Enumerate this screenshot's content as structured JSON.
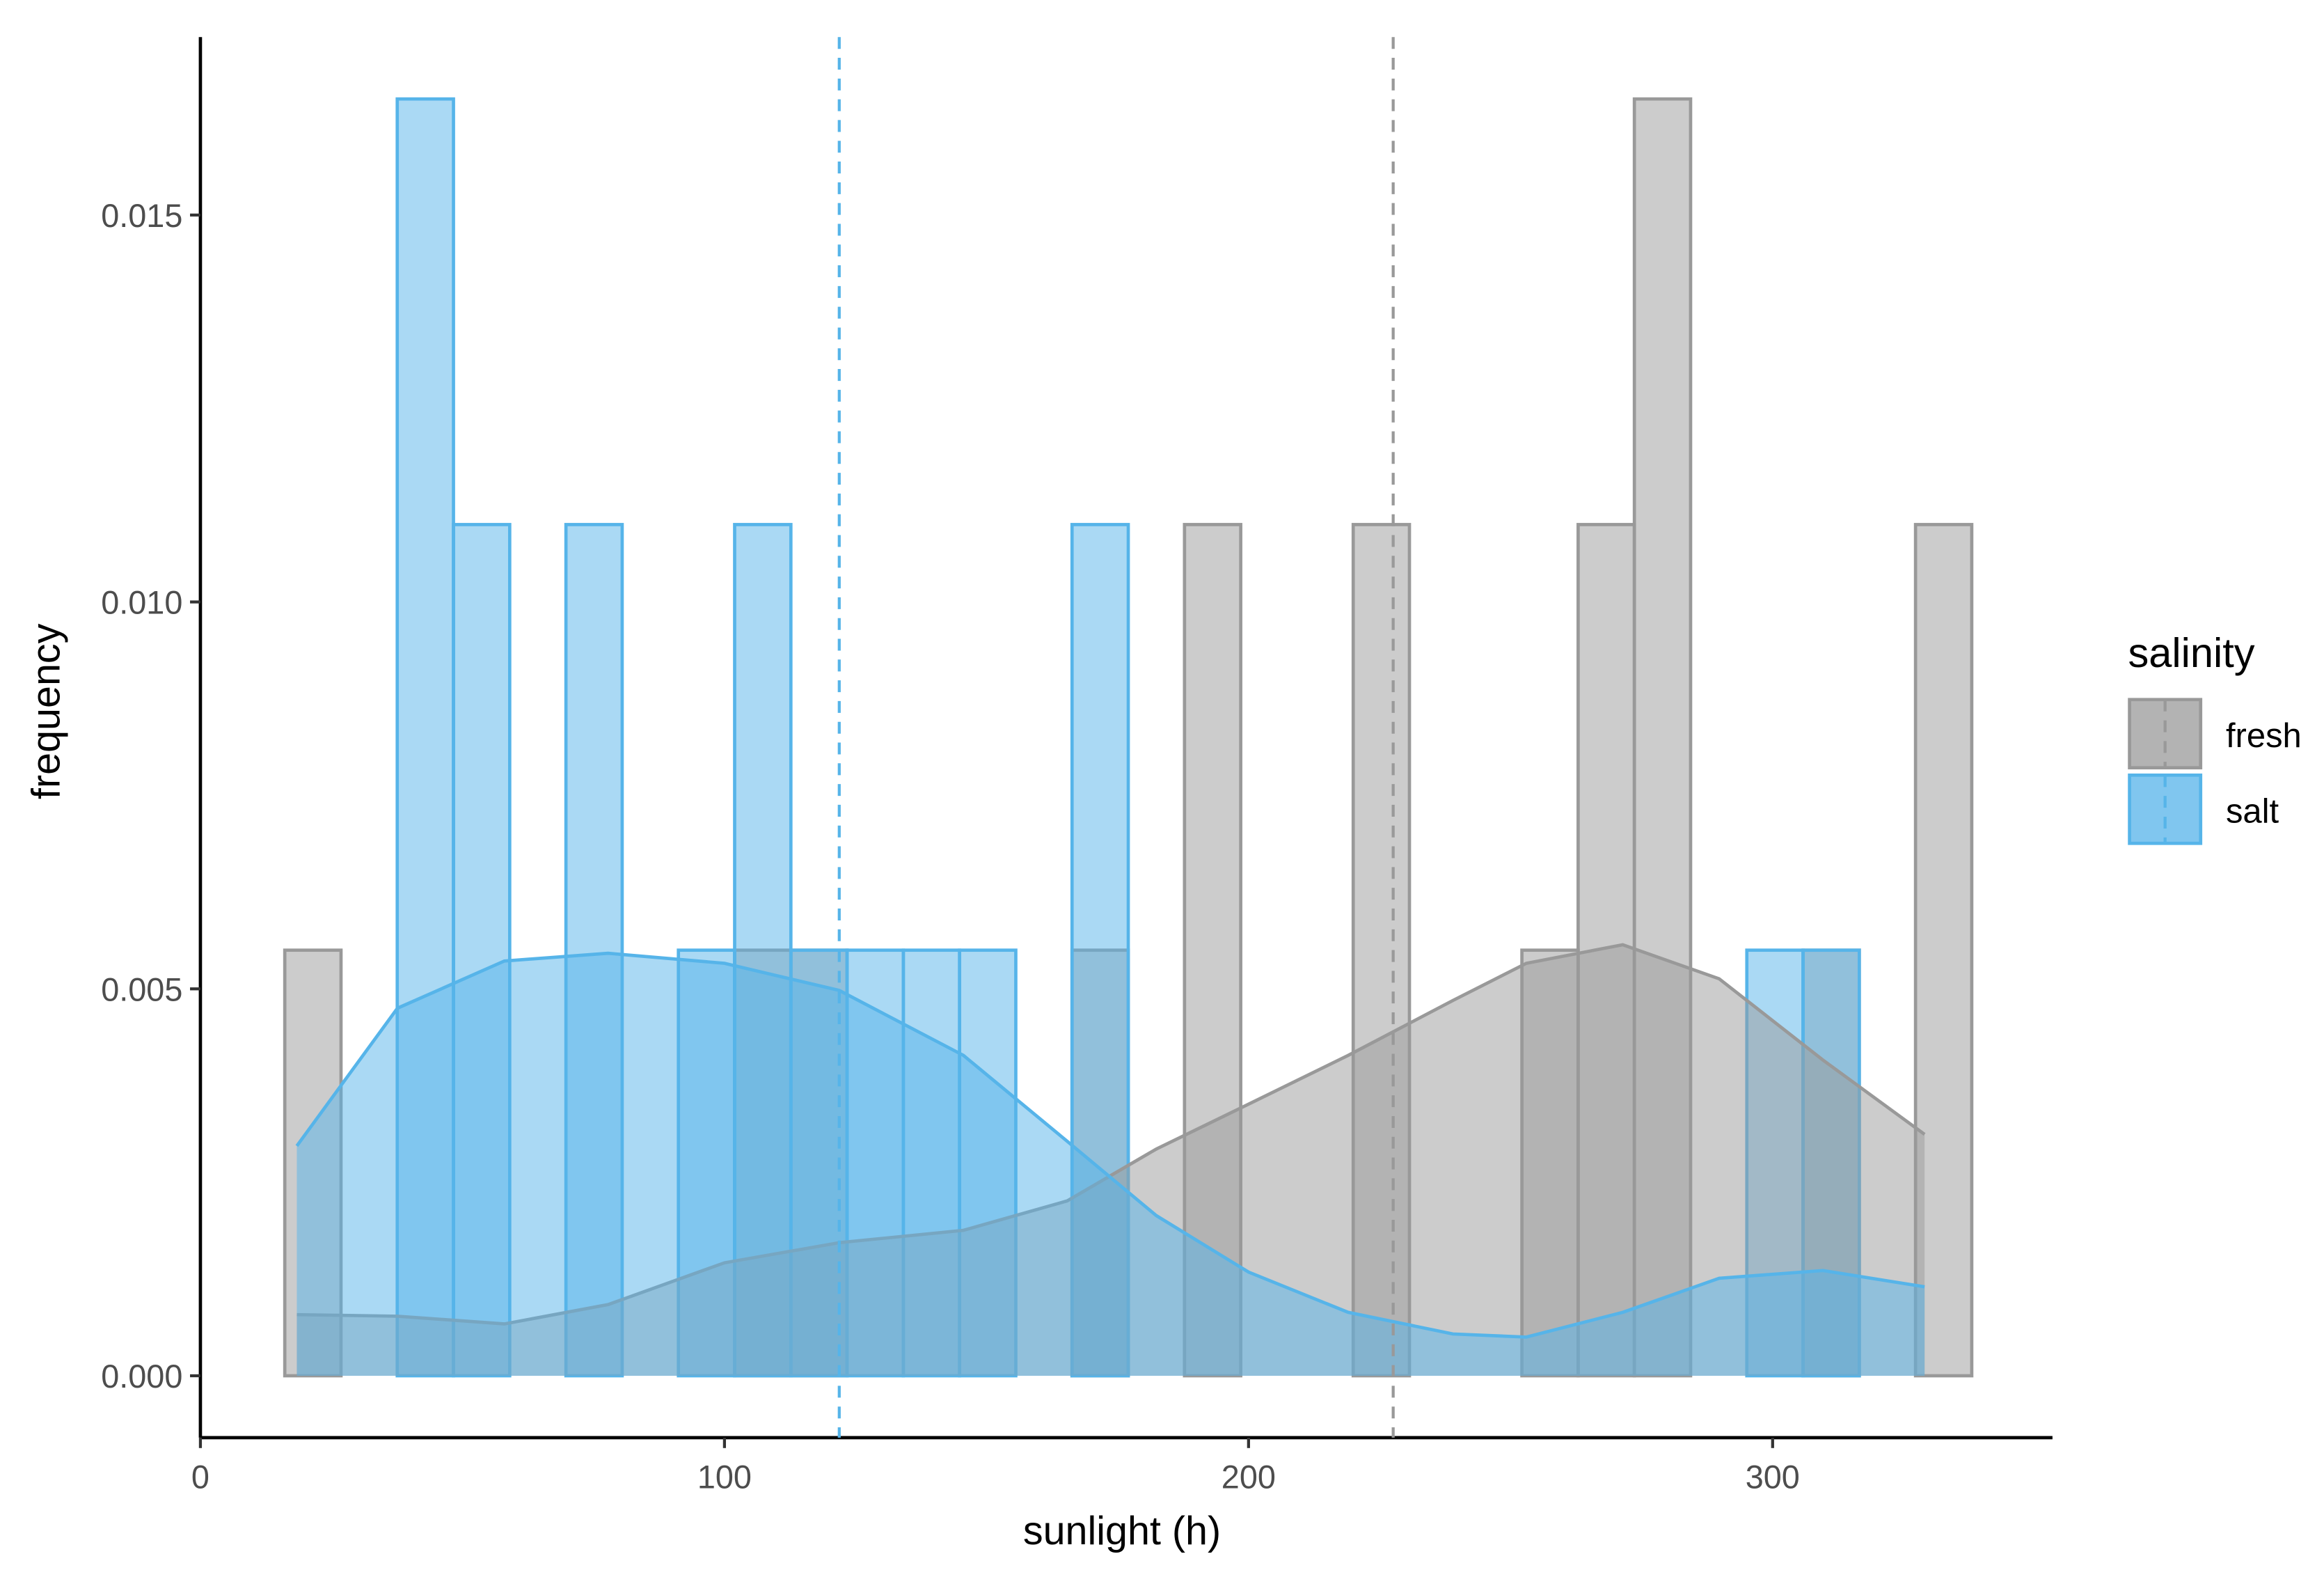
{
  "chart_data": {
    "type": "histogram",
    "x_label": "sunlight (h)",
    "y_label": "frequency",
    "bins": [
      16.1,
      26.83,
      37.56,
      48.29,
      59.02,
      69.75,
      80.48,
      91.21,
      101.94,
      112.67,
      123.4,
      134.13,
      144.86,
      155.59,
      166.32,
      177.05,
      187.78,
      198.51,
      209.24,
      219.97,
      230.7,
      241.43,
      252.16,
      262.89,
      273.62,
      284.35,
      295.08,
      305.81,
      316.54,
      327.27,
      338.0
    ],
    "series": [
      {
        "name": "fresh",
        "color": "#999999",
        "values": [
          0.0055,
          0,
          0,
          0,
          0,
          0,
          0,
          0,
          0.0055,
          0.0055,
          0,
          0,
          0,
          0,
          0.0055,
          0,
          0.011,
          0,
          0,
          0.011,
          0,
          0,
          0.0055,
          0.011,
          0.0165,
          0,
          0,
          0.0055,
          0,
          0.011
        ],
        "density": [
          0.00079,
          0.00077,
          0.00067,
          0.00092,
          0.00146,
          0.00172,
          0.00188,
          0.00226,
          0.00293,
          0.00351,
          0.00414,
          0.00485,
          0.00533,
          0.00557,
          0.00513,
          0.00408,
          0.00312
        ],
        "mean": 227.6
      },
      {
        "name": "salt",
        "color": "#56B4E9",
        "values": [
          0,
          0,
          0.0165,
          0.011,
          0,
          0.011,
          0,
          0.0055,
          0.011,
          0.0055,
          0.0055,
          0.0055,
          0.0055,
          0,
          0.011,
          0,
          0,
          0,
          0,
          0,
          0,
          0,
          0,
          0,
          0,
          0,
          0.0055,
          0.0055,
          0,
          0
        ],
        "density": [
          0.00297,
          0.00475,
          0.00536,
          0.00546,
          0.00533,
          0.00498,
          0.00414,
          0.00303,
          0.00207,
          0.00134,
          0.00082,
          0.00054,
          0.0005,
          0.00082,
          0.00126,
          0.00136,
          0.00115
        ],
        "mean": 121.9
      }
    ],
    "density_x": [
      18.4,
      37.6,
      58,
      77.8,
      100,
      121.9,
      145.6,
      165.4,
      182.4,
      200,
      219,
      239,
      253,
      271.4,
      289.8,
      309.6,
      329
    ],
    "xlim": [
      0,
      353.4
    ],
    "ylim": [
      -0.0008,
      0.0173
    ],
    "xticks": [
      0,
      100,
      200,
      300
    ],
    "yticks": [
      {
        "value": 0,
        "label": "0.000"
      },
      {
        "value": 0.005,
        "label": "0.005"
      },
      {
        "value": 0.01,
        "label": "0.010"
      },
      {
        "value": 0.015,
        "label": "0.015"
      }
    ],
    "legend_title": "salinity",
    "legend_position": "right"
  }
}
